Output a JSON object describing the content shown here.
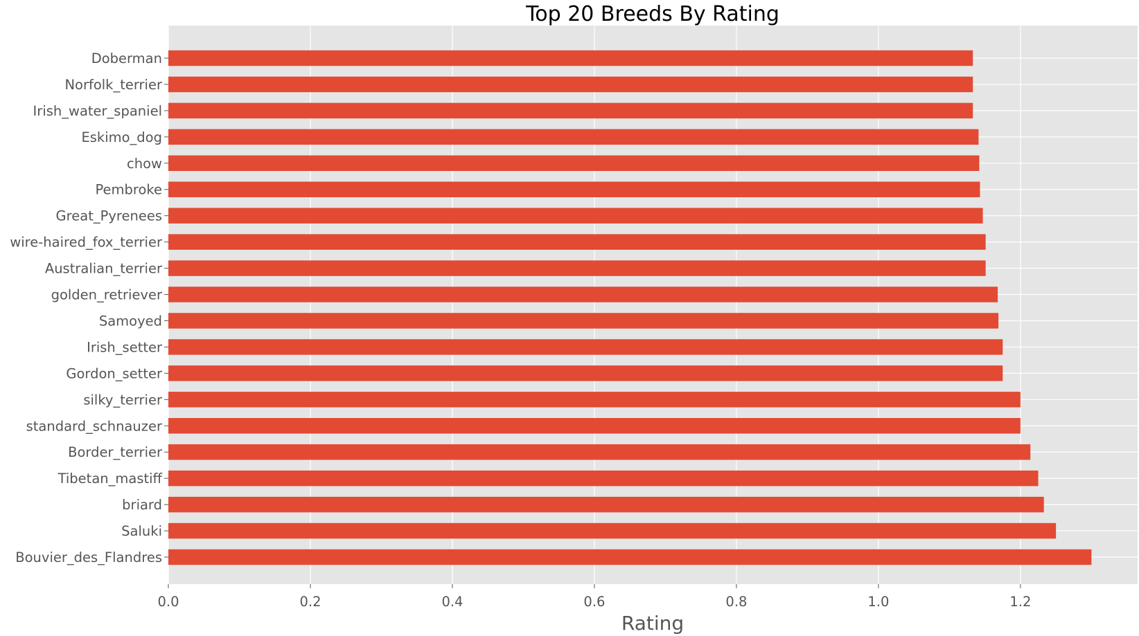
{
  "chart_data": {
    "type": "bar",
    "orientation": "horizontal",
    "title": "Top 20 Breeds By Rating",
    "xlabel": "Rating",
    "ylabel": "",
    "xlim": [
      0,
      1.365
    ],
    "xticks": [
      "0.0",
      "0.2",
      "0.4",
      "0.6",
      "0.8",
      "1.0",
      "1.2"
    ],
    "xtick_values": [
      0,
      0.2,
      0.4,
      0.6,
      0.8,
      1.0,
      1.2
    ],
    "grid": true,
    "legend": "none",
    "colors": {
      "bar": "#E24A33",
      "plot_background": "#E5E5E5",
      "grid": "#FFFFFF"
    },
    "categories": [
      "Bouvier_des_Flandres",
      "Saluki",
      "briard",
      "Tibetan_mastiff",
      "Border_terrier",
      "standard_schnauzer",
      "silky_terrier",
      "Gordon_setter",
      "Irish_setter",
      "Samoyed",
      "golden_retriever",
      "Australian_terrier",
      "wire-haired_fox_terrier",
      "Great_Pyrenees",
      "Pembroke",
      "chow",
      "Eskimo_dog",
      "Irish_water_spaniel",
      "Norfolk_terrier",
      "Doberman"
    ],
    "values": [
      1.3,
      1.25,
      1.233,
      1.225,
      1.214,
      1.2,
      1.2,
      1.175,
      1.175,
      1.169,
      1.168,
      1.151,
      1.151,
      1.147,
      1.143,
      1.142,
      1.141,
      1.133,
      1.133,
      1.133
    ]
  }
}
